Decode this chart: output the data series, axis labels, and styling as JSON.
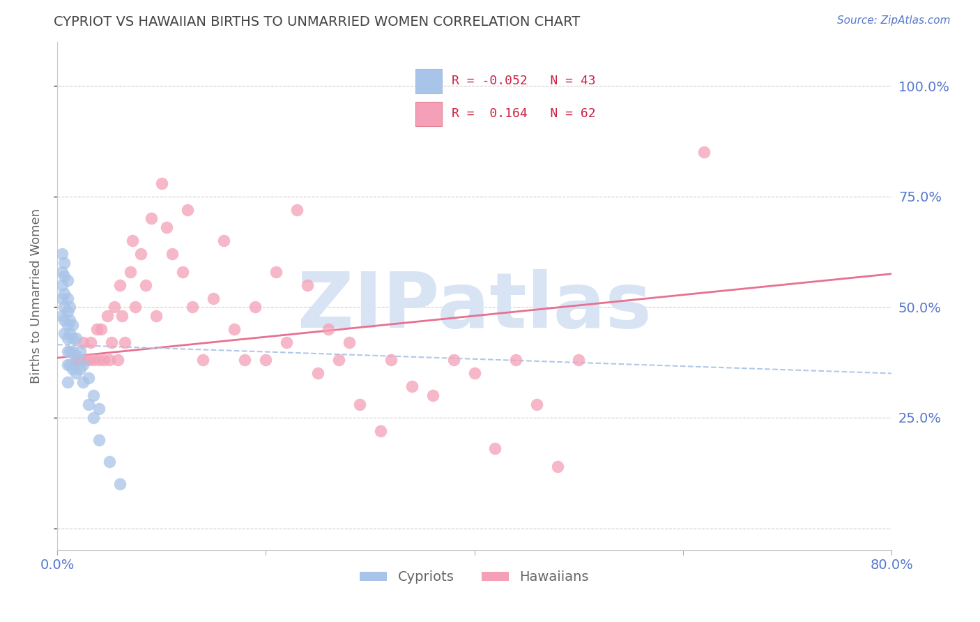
{
  "title": "CYPRIOT VS HAWAIIAN BIRTHS TO UNMARRIED WOMEN CORRELATION CHART",
  "source": "Source: ZipAtlas.com",
  "ylabel": "Births to Unmarried Women",
  "xlim": [
    0.0,
    0.8
  ],
  "ylim": [
    -0.05,
    1.1
  ],
  "cypriot_color": "#A8C4E8",
  "hawaiian_color": "#F4A0B8",
  "trend_cypriot_color": "#B0C8E8",
  "trend_hawaiian_color": "#E87090",
  "watermark": "ZIPatlas",
  "watermark_color": "#D8E4F4",
  "background_color": "#FFFFFF",
  "grid_color": "#CCCCCC",
  "title_color": "#444444",
  "axis_label_color": "#666666",
  "tick_label_color": "#5577CC",
  "cypriot_x": [
    0.005,
    0.005,
    0.005,
    0.005,
    0.005,
    0.007,
    0.007,
    0.007,
    0.007,
    0.007,
    0.007,
    0.01,
    0.01,
    0.01,
    0.01,
    0.01,
    0.01,
    0.01,
    0.01,
    0.012,
    0.012,
    0.012,
    0.012,
    0.012,
    0.015,
    0.015,
    0.015,
    0.015,
    0.018,
    0.018,
    0.018,
    0.022,
    0.022,
    0.025,
    0.025,
    0.03,
    0.03,
    0.035,
    0.035,
    0.04,
    0.04,
    0.05,
    0.06
  ],
  "cypriot_y": [
    0.62,
    0.58,
    0.55,
    0.52,
    0.48,
    0.6,
    0.57,
    0.53,
    0.5,
    0.47,
    0.44,
    0.56,
    0.52,
    0.49,
    0.46,
    0.43,
    0.4,
    0.37,
    0.33,
    0.5,
    0.47,
    0.44,
    0.4,
    0.37,
    0.46,
    0.43,
    0.4,
    0.36,
    0.43,
    0.39,
    0.35,
    0.4,
    0.36,
    0.37,
    0.33,
    0.34,
    0.28,
    0.3,
    0.25,
    0.27,
    0.2,
    0.15,
    0.1
  ],
  "hawaiian_x": [
    0.018,
    0.02,
    0.022,
    0.025,
    0.025,
    0.03,
    0.032,
    0.035,
    0.038,
    0.04,
    0.042,
    0.045,
    0.048,
    0.05,
    0.052,
    0.055,
    0.058,
    0.06,
    0.062,
    0.065,
    0.07,
    0.072,
    0.075,
    0.08,
    0.085,
    0.09,
    0.095,
    0.1,
    0.105,
    0.11,
    0.12,
    0.125,
    0.13,
    0.14,
    0.15,
    0.16,
    0.17,
    0.18,
    0.19,
    0.2,
    0.21,
    0.22,
    0.23,
    0.24,
    0.25,
    0.26,
    0.27,
    0.28,
    0.29,
    0.31,
    0.32,
    0.34,
    0.36,
    0.38,
    0.4,
    0.42,
    0.44,
    0.46,
    0.48,
    0.5,
    0.62
  ],
  "hawaiian_y": [
    0.38,
    0.38,
    0.38,
    0.38,
    0.42,
    0.38,
    0.42,
    0.38,
    0.45,
    0.38,
    0.45,
    0.38,
    0.48,
    0.38,
    0.42,
    0.5,
    0.38,
    0.55,
    0.48,
    0.42,
    0.58,
    0.65,
    0.5,
    0.62,
    0.55,
    0.7,
    0.48,
    0.78,
    0.68,
    0.62,
    0.58,
    0.72,
    0.5,
    0.38,
    0.52,
    0.65,
    0.45,
    0.38,
    0.5,
    0.38,
    0.58,
    0.42,
    0.72,
    0.55,
    0.35,
    0.45,
    0.38,
    0.42,
    0.28,
    0.22,
    0.38,
    0.32,
    0.3,
    0.38,
    0.35,
    0.18,
    0.38,
    0.28,
    0.14,
    0.38,
    0.85
  ],
  "trend_hawaiian_x0": 0.0,
  "trend_hawaiian_y0": 0.385,
  "trend_hawaiian_x1": 0.8,
  "trend_hawaiian_y1": 0.575,
  "trend_cypriot_x0": 0.0,
  "trend_cypriot_y0": 0.415,
  "trend_cypriot_x1": 0.8,
  "trend_cypriot_y1": 0.35
}
